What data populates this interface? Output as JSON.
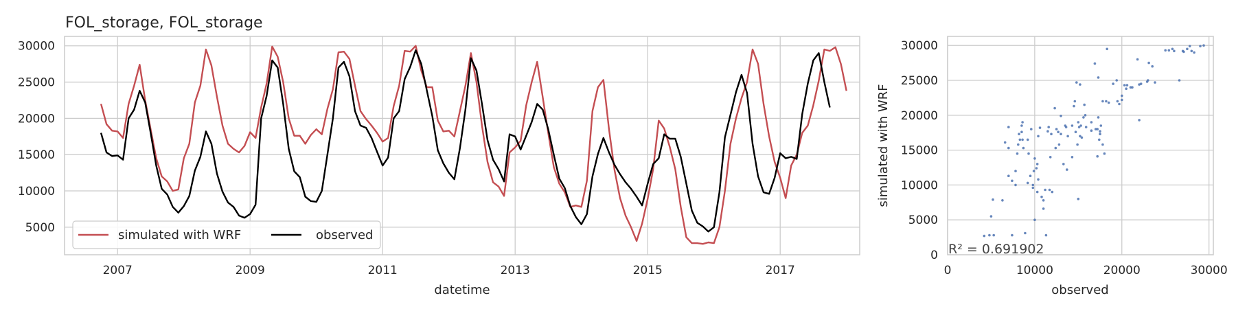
{
  "chart_data": [
    {
      "type": "line",
      "title": "FOL_storage, FOL_storage",
      "xlabel": "datetime",
      "ylabel": "",
      "x_ticks": [
        "2007",
        "2009",
        "2011",
        "2013",
        "2015",
        "2017"
      ],
      "y_ticks": [
        "5000",
        "10000",
        "15000",
        "20000",
        "25000",
        "30000"
      ],
      "xlim": [
        2006.2,
        2018.2
      ],
      "ylim": [
        1200,
        31300
      ],
      "grid": true,
      "legend": "lower-left",
      "x_start": 2006.75,
      "x_step": 0.08333,
      "series": [
        {
          "name": "simulated with WRF",
          "color": "#c44e52",
          "values": [
            22000,
            19200,
            18300,
            18200,
            17300,
            22000,
            24500,
            27400,
            22500,
            18500,
            14500,
            12000,
            11300,
            10000,
            10200,
            14500,
            16500,
            22200,
            24500,
            29500,
            27300,
            23000,
            19000,
            16500,
            15800,
            15300,
            16200,
            18100,
            17300,
            21500,
            24800,
            29900,
            28500,
            25000,
            20000,
            17600,
            17600,
            16500,
            17700,
            18500,
            17800,
            21300,
            24000,
            29100,
            29200,
            28200,
            24500,
            21000,
            19900,
            19000,
            18000,
            16800,
            17300,
            21700,
            24500,
            29300,
            29200,
            30000,
            26600,
            24300,
            24300,
            19700,
            18200,
            18300,
            17500,
            21000,
            24500,
            29000,
            25000,
            19000,
            14000,
            11200,
            10600,
            9300,
            15300,
            16000,
            16900,
            21800,
            25000,
            27800,
            22900,
            18000,
            13300,
            11000,
            9800,
            7800,
            8000,
            7800,
            11400,
            21000,
            24300,
            25300,
            18500,
            12900,
            9000,
            6600,
            5000,
            3100,
            5500,
            8900,
            13000,
            19700,
            18600,
            16100,
            13000,
            7800,
            3600,
            2800,
            2800,
            2700,
            2900,
            2800,
            5000,
            10000,
            16500,
            20000,
            22800,
            25000,
            29500,
            27500,
            22000,
            17500,
            14000,
            11800,
            9000,
            13500,
            15000,
            18000,
            19000,
            21800,
            25200,
            29500,
            29300,
            29800,
            27500,
            23800
          ]
        },
        {
          "name": "observed",
          "color": "#000000",
          "values": [
            18000,
            15300,
            14800,
            14900,
            14300,
            20000,
            21200,
            23800,
            22200,
            18000,
            13500,
            10300,
            9500,
            7800,
            7000,
            7900,
            9300,
            12800,
            14700,
            18200,
            16500,
            12400,
            9900,
            8400,
            7800,
            6600,
            6300,
            6800,
            8100,
            20000,
            23100,
            28000,
            27000,
            22000,
            15800,
            12700,
            11900,
            9200,
            8600,
            8500,
            10000,
            15000,
            20000,
            27000,
            27800,
            25800,
            21000,
            19000,
            18700,
            17300,
            15400,
            13500,
            14600,
            20000,
            21000,
            25400,
            27100,
            29400,
            27500,
            23900,
            20300,
            15600,
            13800,
            12500,
            11600,
            15900,
            21200,
            28300,
            26600,
            22000,
            17000,
            14300,
            13000,
            11300,
            17800,
            17500,
            15700,
            17600,
            19500,
            22000,
            21200,
            18500,
            15000,
            11700,
            10400,
            7900,
            6400,
            5400,
            6800,
            12000,
            15100,
            17300,
            15300,
            13600,
            12300,
            11200,
            10300,
            9200,
            8000,
            11000,
            13700,
            14500,
            17800,
            17200,
            17200,
            14700,
            11000,
            7300,
            5600,
            5100,
            4400,
            5000,
            9800,
            17400,
            20500,
            23600,
            26000,
            23500,
            16500,
            12000,
            9800,
            9600,
            11800,
            15200,
            14500,
            14700,
            14400,
            20600,
            24800,
            28000,
            29000,
            25000,
            21500
          ]
        }
      ]
    },
    {
      "type": "scatter",
      "xlabel": "observed",
      "ylabel": "simulated with WRF",
      "x_ticks": [
        "0",
        "10000",
        "20000",
        "30000"
      ],
      "y_ticks": [
        "0",
        "5000",
        "10000",
        "15000",
        "20000",
        "25000",
        "30000"
      ],
      "xlim": [
        0,
        30500
      ],
      "ylim": [
        0,
        31300
      ],
      "grid": true,
      "color": "#4c72b0",
      "annotation": "R² = 0.691902",
      "points": [
        [
          4200,
          2700
        ],
        [
          4800,
          2800
        ],
        [
          5300,
          2800
        ],
        [
          5000,
          5500
        ],
        [
          5200,
          7900
        ],
        [
          6300,
          7800
        ],
        [
          6600,
          16100
        ],
        [
          7000,
          15300
        ],
        [
          7000,
          18300
        ],
        [
          7000,
          11300
        ],
        [
          7400,
          10600
        ],
        [
          7400,
          2800
        ],
        [
          7800,
          10000
        ],
        [
          7800,
          12000
        ],
        [
          8000,
          14500
        ],
        [
          8100,
          15800
        ],
        [
          8200,
          17300
        ],
        [
          8300,
          16500
        ],
        [
          8500,
          18500
        ],
        [
          8600,
          19000
        ],
        [
          8600,
          16500
        ],
        [
          8500,
          17600
        ],
        [
          8700,
          15300
        ],
        [
          8900,
          3100
        ],
        [
          9200,
          16500
        ],
        [
          9300,
          14500
        ],
        [
          9200,
          10300
        ],
        [
          9500,
          11300
        ],
        [
          9600,
          18000
        ],
        [
          9800,
          9600
        ],
        [
          9800,
          10000
        ],
        [
          9900,
          12000
        ],
        [
          10000,
          5000
        ],
        [
          10000,
          13800
        ],
        [
          10200,
          12400
        ],
        [
          10300,
          9000
        ],
        [
          10300,
          13000
        ],
        [
          10400,
          10800
        ],
        [
          10400,
          17000
        ],
        [
          10600,
          18200
        ],
        [
          10800,
          8300
        ],
        [
          11000,
          7800
        ],
        [
          11000,
          6600
        ],
        [
          11200,
          9300
        ],
        [
          11300,
          2800
        ],
        [
          11500,
          17700
        ],
        [
          11600,
          18300
        ],
        [
          11700,
          9300
        ],
        [
          11800,
          14000
        ],
        [
          11900,
          17300
        ],
        [
          12000,
          9000
        ],
        [
          12300,
          21000
        ],
        [
          12400,
          15300
        ],
        [
          12500,
          18000
        ],
        [
          12700,
          17600
        ],
        [
          12800,
          15800
        ],
        [
          13000,
          19900
        ],
        [
          13000,
          17300
        ],
        [
          13300,
          13000
        ],
        [
          13500,
          18500
        ],
        [
          13600,
          18300
        ],
        [
          13700,
          12200
        ],
        [
          13800,
          17000
        ],
        [
          14300,
          18500
        ],
        [
          14300,
          14000
        ],
        [
          14500,
          21300
        ],
        [
          14600,
          22000
        ],
        [
          14700,
          17600
        ],
        [
          14800,
          24700
        ],
        [
          14900,
          15800
        ],
        [
          15000,
          8000
        ],
        [
          15000,
          19000
        ],
        [
          15100,
          18300
        ],
        [
          15200,
          17000
        ],
        [
          15200,
          24400
        ],
        [
          15300,
          18500
        ],
        [
          15400,
          16800
        ],
        [
          15600,
          19700
        ],
        [
          15700,
          21500
        ],
        [
          15800,
          20000
        ],
        [
          15900,
          18300
        ],
        [
          16500,
          17800
        ],
        [
          16500,
          19000
        ],
        [
          16900,
          27400
        ],
        [
          17000,
          18000
        ],
        [
          17200,
          14100
        ],
        [
          17200,
          18000
        ],
        [
          17300,
          19700
        ],
        [
          17300,
          25400
        ],
        [
          17400,
          16500
        ],
        [
          17500,
          17300
        ],
        [
          17500,
          17700
        ],
        [
          17600,
          18500
        ],
        [
          17800,
          22000
        ],
        [
          17800,
          15800
        ],
        [
          18000,
          14500
        ],
        [
          18200,
          22000
        ],
        [
          18300,
          29500
        ],
        [
          18500,
          21800
        ],
        [
          19000,
          24500
        ],
        [
          19400,
          25000
        ],
        [
          19500,
          22000
        ],
        [
          19700,
          21600
        ],
        [
          20000,
          22200
        ],
        [
          20000,
          22800
        ],
        [
          20300,
          24300
        ],
        [
          20500,
          23800
        ],
        [
          20600,
          24300
        ],
        [
          21000,
          24000
        ],
        [
          21200,
          24000
        ],
        [
          21800,
          28000
        ],
        [
          22000,
          24400
        ],
        [
          22000,
          19300
        ],
        [
          22200,
          24500
        ],
        [
          22900,
          24800
        ],
        [
          23000,
          25000
        ],
        [
          23100,
          27500
        ],
        [
          23500,
          27000
        ],
        [
          23800,
          24700
        ],
        [
          25000,
          29300
        ],
        [
          25400,
          29300
        ],
        [
          25800,
          29500
        ],
        [
          26000,
          29200
        ],
        [
          26600,
          25000
        ],
        [
          27000,
          29200
        ],
        [
          27100,
          29100
        ],
        [
          27500,
          29500
        ],
        [
          27800,
          29900
        ],
        [
          28000,
          29200
        ],
        [
          28300,
          29000
        ],
        [
          29000,
          29900
        ],
        [
          29400,
          30000
        ]
      ]
    }
  ]
}
